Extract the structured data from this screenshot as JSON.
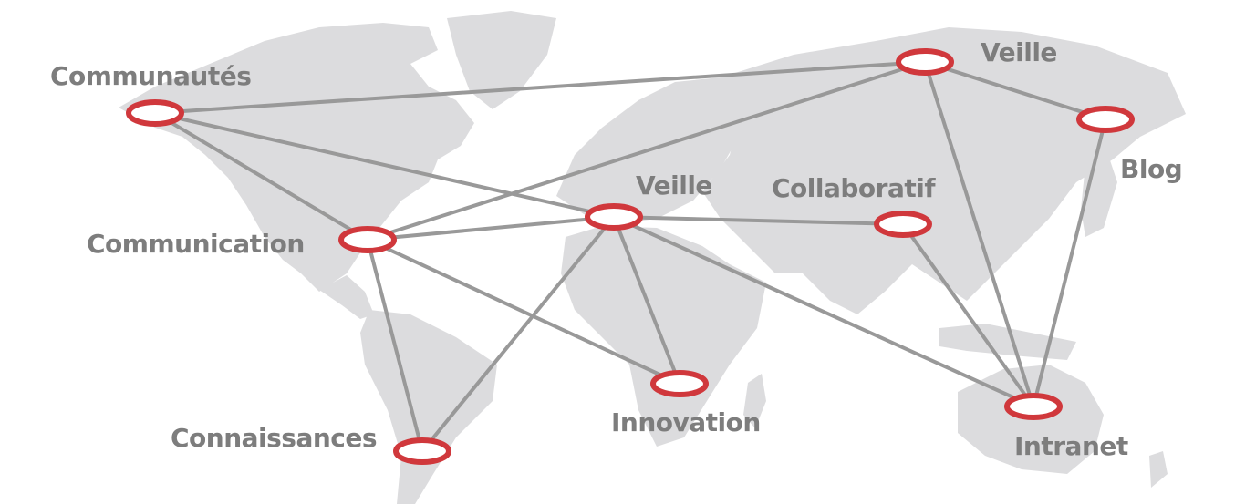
{
  "colors": {
    "continent": "#dcdcde",
    "link": "#999999",
    "node_stroke": "#d0383c",
    "node_fill": "#ffffff",
    "label": "#7d7d7d"
  },
  "nodes": [
    {
      "id": "communautes",
      "label": "Communautés"
    },
    {
      "id": "veille-north",
      "label": "Veille"
    },
    {
      "id": "blog",
      "label": "Blog"
    },
    {
      "id": "veille-europe",
      "label": "Veille"
    },
    {
      "id": "collaboratif",
      "label": "Collaboratif"
    },
    {
      "id": "communication",
      "label": "Communication"
    },
    {
      "id": "innovation",
      "label": "Innovation"
    },
    {
      "id": "connaissances",
      "label": "Connaissances"
    },
    {
      "id": "intranet",
      "label": "Intranet"
    }
  ],
  "links": [
    [
      "communautes",
      "veille-north"
    ],
    [
      "communautes",
      "communication"
    ],
    [
      "communautes",
      "veille-europe"
    ],
    [
      "veille-north",
      "blog"
    ],
    [
      "veille-north",
      "communication"
    ],
    [
      "veille-north",
      "intranet"
    ],
    [
      "blog",
      "intranet"
    ],
    [
      "communication",
      "veille-europe"
    ],
    [
      "communication",
      "innovation"
    ],
    [
      "communication",
      "connaissances"
    ],
    [
      "veille-europe",
      "collaboratif"
    ],
    [
      "veille-europe",
      "innovation"
    ],
    [
      "veille-europe",
      "connaissances"
    ],
    [
      "veille-europe",
      "intranet"
    ],
    [
      "collaboratif",
      "intranet"
    ]
  ]
}
